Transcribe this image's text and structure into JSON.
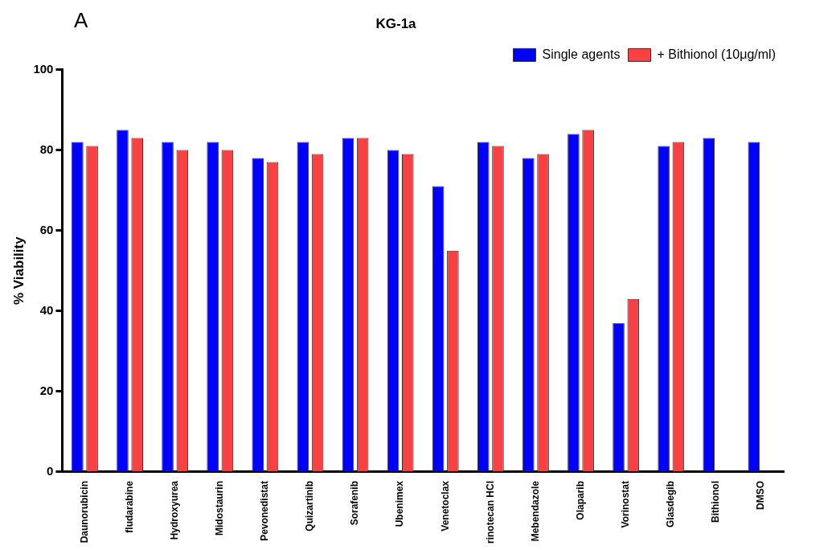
{
  "chart_data": {
    "type": "bar",
    "title": "KG-1a",
    "ylabel": "% Viability",
    "annotations": [
      "A"
    ],
    "categories": [
      "Daunorubicin",
      "fludarabine",
      "Hydroxyurea",
      "Midostaurin",
      "Pevonedistat",
      "Quizartinib",
      "Sorafenib",
      "Ubenimex",
      "Venetoclax",
      "rinotecan HCl",
      "Mebendazole",
      "Olaparib",
      "Vorinostat",
      "Glasdegib",
      "Bithionol",
      "DMSO"
    ],
    "series": [
      {
        "name": "Single agents",
        "color": "#0000ff",
        "values": [
          82,
          85,
          82,
          82,
          78,
          82,
          83,
          80,
          71,
          82,
          78,
          84,
          37,
          81,
          83,
          82
        ]
      },
      {
        "name": "+ Bithionol (10μg/ml)",
        "color": "#f94144",
        "values": [
          81,
          83,
          80,
          80,
          77,
          79,
          83,
          79,
          55,
          81,
          79,
          85,
          43,
          82,
          null,
          null
        ]
      }
    ],
    "ylim": [
      0,
      100
    ],
    "yticks": [
      0,
      20,
      40,
      60,
      80,
      100
    ],
    "grid": false,
    "legend": "top right"
  }
}
